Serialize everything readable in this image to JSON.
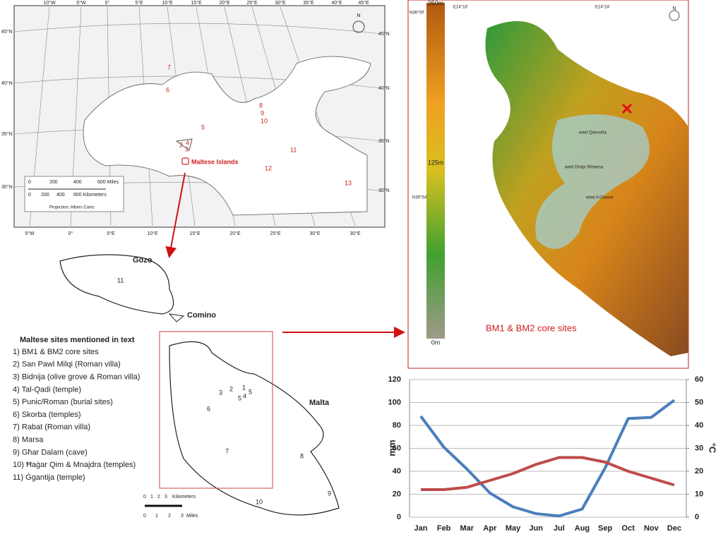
{
  "med_map": {
    "lon_top": [
      "10°W",
      "5°W",
      "0°",
      "5°E",
      "10°E",
      "15°E",
      "20°E",
      "25°E",
      "30°E",
      "35°E",
      "40°E",
      "45°E"
    ],
    "lon_bottom": [
      "5°W",
      "0°",
      "5°E",
      "10°E",
      "15°E",
      "20°E",
      "25°E",
      "30°E",
      "30°E"
    ],
    "lat_left": [
      "45°N",
      "40°N",
      "35°N",
      "30°N"
    ],
    "lat_right": [
      "45°N",
      "40°N",
      "35°N",
      "30°N"
    ],
    "site_numbers": [
      "7",
      "6",
      "5",
      "8",
      "9",
      "10",
      "2",
      "4",
      "3",
      "11",
      "12",
      "13"
    ],
    "label": "Maltese Islands",
    "scale_miles": [
      "0",
      "200",
      "400",
      "600 Miles"
    ],
    "scale_km": [
      "0",
      "200",
      "400",
      "600 Kilometers"
    ],
    "projection": "Projection: Albers Conic",
    "north": "N"
  },
  "malta_map": {
    "islands": [
      "Gozo",
      "Comino",
      "Malta"
    ],
    "site_numbers": [
      "11",
      "3",
      "2",
      "1",
      "5",
      "5",
      "4",
      "6",
      "7",
      "8",
      "9",
      "10"
    ],
    "scale_km": [
      "0",
      "1",
      "2",
      "3",
      "Kilometers"
    ],
    "scale_miles": [
      "0",
      "1",
      "2",
      "3",
      "Miles"
    ]
  },
  "site_list": {
    "title": "Maltese sites mentioned in text",
    "items": [
      "1)  BM1 & BM2 core sites",
      "2)  San Pawl Milqi (Roman villa)",
      "3)  Bidnija (olive grove & Roman villa)",
      "4)  Tal-Qadi (temple)",
      "5)  Punic/Roman (burial sites)",
      "6)  Skorba (temples)",
      "7)  Rabat (Roman villa)",
      "8)  Marsa",
      "9)  Għar Dalam (cave)",
      "10) Ħaġar Qim & Mnajdra (temples)",
      "11) Ġgantija (temple)"
    ]
  },
  "relief_map": {
    "coords": [
      "N36°00'",
      "E14°18'",
      "E14°24'",
      "N35°54'"
    ],
    "colorbar": [
      "250m",
      "125m",
      "0m"
    ],
    "valleys": [
      "wied Qannotta",
      "wied Ghajn Rihanna",
      "wied Il-Ghasel"
    ],
    "core_label": "BM1 & BM2 core sites",
    "north": "N"
  },
  "chart_data": {
    "type": "line",
    "categories": [
      "Jan",
      "Feb",
      "Mar",
      "Apr",
      "May",
      "Jun",
      "Jul",
      "Aug",
      "Sep",
      "Oct",
      "Nov",
      "Dec"
    ],
    "series": [
      {
        "color": "#4a7ebb",
        "values": [
          88,
          61,
          42,
          21,
          9,
          3,
          1,
          7,
          43,
          86,
          87,
          102
        ]
      },
      {
        "color": "#be4b48",
        "axis": "y2",
        "values": [
          12,
          12,
          13,
          16,
          19,
          23,
          26,
          26,
          24,
          20,
          17,
          14
        ]
      }
    ],
    "y_label": "mm",
    "y2_label": "°C",
    "ylim": [
      0,
      120
    ],
    "yticks": [
      0,
      20,
      40,
      60,
      80,
      100,
      120
    ],
    "y2lim": [
      0,
      60
    ],
    "y2ticks": [
      0,
      10,
      20,
      30,
      40,
      50,
      60
    ],
    "grid": true
  }
}
